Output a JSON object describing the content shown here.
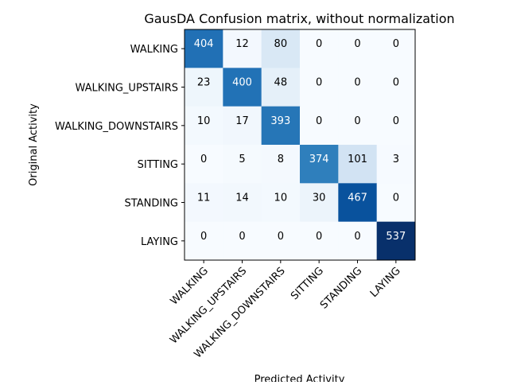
{
  "chart_data": {
    "type": "heatmap",
    "title": "GausDA Confusion matrix, without normalization",
    "xlabel": "Predicted Activity",
    "ylabel": "Original Activity",
    "x_categories": [
      "WALKING",
      "WALKING_UPSTAIRS",
      "WALKING_DOWNSTAIRS",
      "SITTING",
      "STANDING",
      "LAYING"
    ],
    "y_categories": [
      "WALKING",
      "WALKING_UPSTAIRS",
      "WALKING_DOWNSTAIRS",
      "SITTING",
      "STANDING",
      "LAYING"
    ],
    "values": [
      [
        404,
        12,
        80,
        0,
        0,
        0
      ],
      [
        23,
        400,
        48,
        0,
        0,
        0
      ],
      [
        10,
        17,
        393,
        0,
        0,
        0
      ],
      [
        0,
        5,
        8,
        374,
        101,
        3
      ],
      [
        11,
        14,
        10,
        30,
        467,
        0
      ],
      [
        0,
        0,
        0,
        0,
        0,
        537
      ]
    ],
    "colormap": "Blues",
    "x_tick_rotation_deg": 45,
    "grid": false,
    "legend": "none"
  }
}
